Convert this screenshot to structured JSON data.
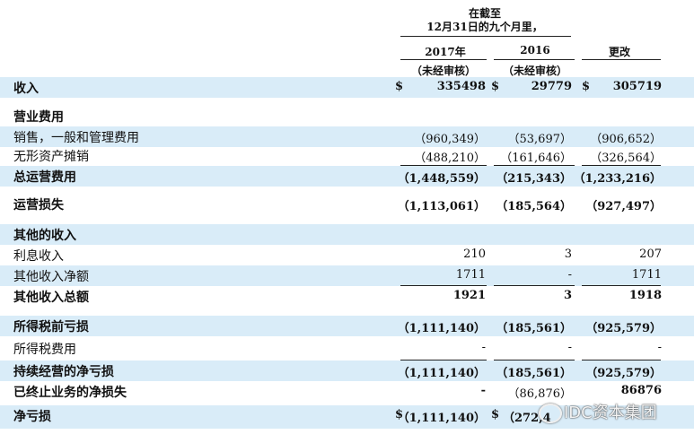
{
  "header": {
    "period_line1": "在截至",
    "period_line2": "12月31日的九个月里，",
    "col1_year": "2017年",
    "col2_year": "2016",
    "col3_title": "更改",
    "col1_note": "（未经审核）",
    "col2_note": "（未经审核）"
  },
  "rows": [
    {
      "label": "收入",
      "c1": "335498",
      "c2": "29779",
      "c3": "305719",
      "d1": "$",
      "d2": "$",
      "d3": "$"
    },
    {
      "label": "营业费用",
      "c1": "",
      "c2": "",
      "c3": ""
    },
    {
      "label": "销售，一般和管理费用",
      "c1": "（960,349）",
      "c2": "（53,697）",
      "c3": "（906,652）"
    },
    {
      "label": "无形资产摊销",
      "c1": "（488,210）",
      "c2": "（161,646）",
      "c3": "（326,564）"
    },
    {
      "label": "总运营费用",
      "c1": "（1,448,559）",
      "c2": "（215,343）",
      "c3": "（1,233,216）"
    },
    {
      "label": "运营损失",
      "c1": "（1,113,061）",
      "c2": "（185,564）",
      "c3": "（927,497）"
    },
    {
      "label": "其他的收入",
      "c1": "",
      "c2": "",
      "c3": ""
    },
    {
      "label": "利息收入",
      "c1": "210",
      "c2": "3",
      "c3": "207"
    },
    {
      "label": "其他收入净额",
      "c1": "1711",
      "c2": "-",
      "c3": "1711"
    },
    {
      "label": "其他收入总额",
      "c1": "1921",
      "c2": "3",
      "c3": "1918"
    },
    {
      "label": "所得税前亏损",
      "c1": "（1,111,140）",
      "c2": "（185,561）",
      "c3": "（925,579）"
    },
    {
      "label": "所得税费用",
      "c1": "-",
      "c2": "-",
      "c3": "-"
    },
    {
      "label": "持续经营的净亏损",
      "c1": "（1,111,140）",
      "c2": "（185,561）",
      "c3": "（925,579）"
    },
    {
      "label": "已终止业务的净损失",
      "c1": "-",
      "c2": "（86,876）",
      "c3": "86876"
    },
    {
      "label": "净亏损",
      "c1": "（1,111,140）",
      "c2": "（272,4",
      "c3": "",
      "d1": "$",
      "d2": "$"
    }
  ],
  "watermark": "IDC资本集团"
}
